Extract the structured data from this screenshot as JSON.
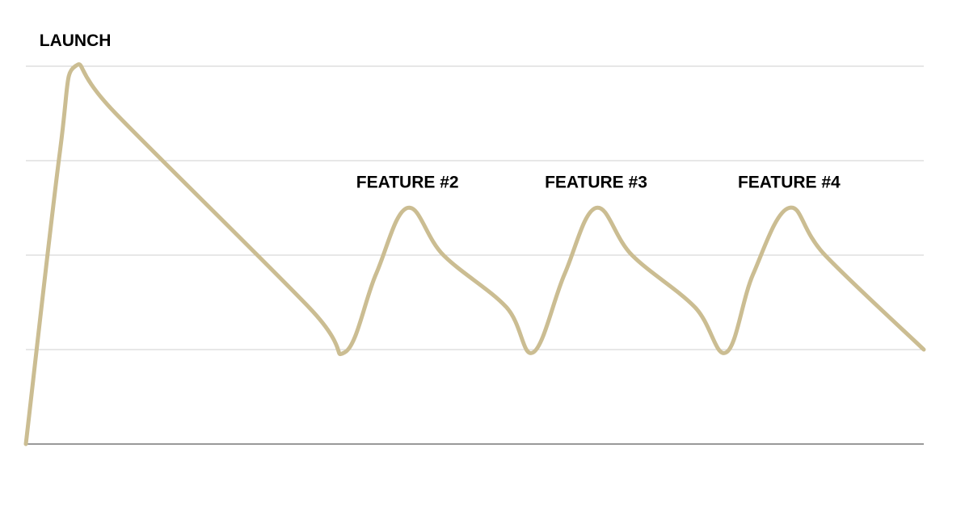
{
  "chart_data": {
    "type": "line",
    "title": "",
    "xlabel": "",
    "ylabel": "",
    "xlim": [
      0,
      100
    ],
    "ylim": [
      0,
      4
    ],
    "grid": true,
    "gridlines_y": [
      1,
      2,
      3,
      4
    ],
    "series": [
      {
        "color": "#cbbd92",
        "points": [
          [
            0,
            0
          ],
          [
            3.8,
            3.1
          ],
          [
            5.5,
            4.0
          ],
          [
            10,
            3.5
          ],
          [
            31.5,
            1.45
          ],
          [
            35.5,
            0.97
          ],
          [
            39,
            1.8
          ],
          [
            42.5,
            2.5
          ],
          [
            46.5,
            2.0
          ],
          [
            53.5,
            1.45
          ],
          [
            56.5,
            0.97
          ],
          [
            60,
            1.8
          ],
          [
            63.5,
            2.5
          ],
          [
            67.5,
            2.0
          ],
          [
            74.5,
            1.45
          ],
          [
            78,
            0.97
          ],
          [
            81,
            1.8
          ],
          [
            85,
            2.5
          ],
          [
            89,
            2.0
          ],
          [
            100,
            1.0
          ]
        ]
      }
    ],
    "annotations": [
      {
        "text": "LAUNCH",
        "x": 5.5,
        "y": 4.0,
        "anchor": "peak"
      },
      {
        "text": "FEATURE #2",
        "x": 42.5,
        "y": 2.5,
        "anchor": "peak"
      },
      {
        "text": "FEATURE #3",
        "x": 63.5,
        "y": 2.5,
        "anchor": "peak"
      },
      {
        "text": "FEATURE #4",
        "x": 85,
        "y": 2.5,
        "anchor": "peak"
      }
    ]
  }
}
